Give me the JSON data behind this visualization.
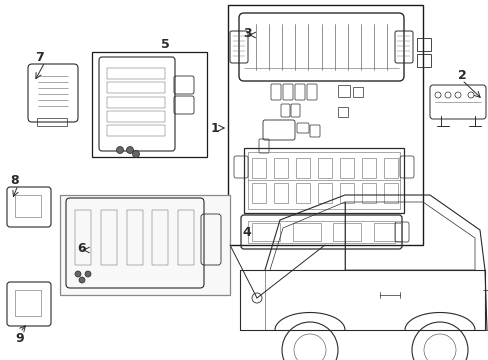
{
  "bg_color": "#ffffff",
  "lc": "#2a2a2a",
  "lc_gray": "#666666",
  "lc_light": "#999999",
  "figsize": [
    4.89,
    3.6
  ],
  "dpi": 100,
  "xlim": [
    0,
    489
  ],
  "ylim": [
    0,
    360
  ]
}
